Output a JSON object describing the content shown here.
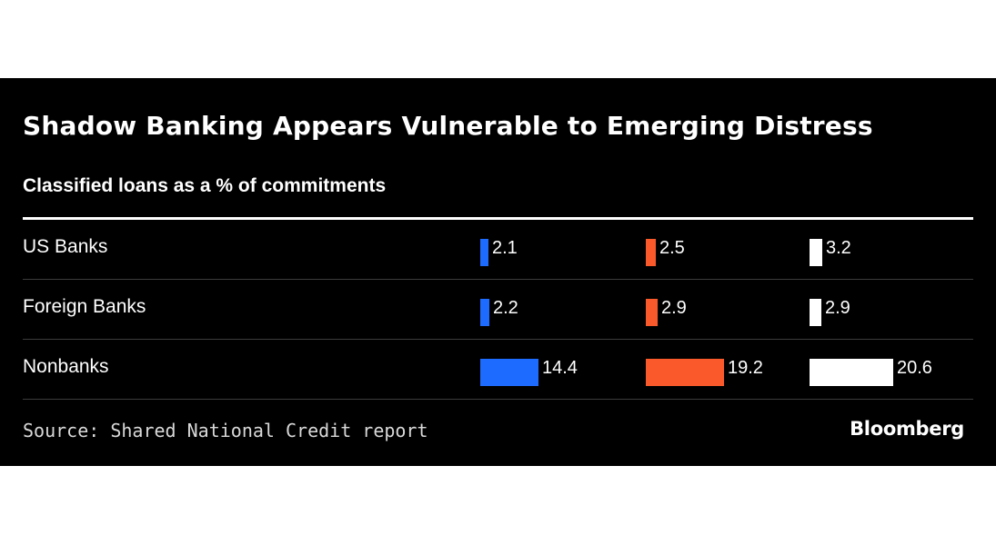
{
  "title": "Shadow Banking Appears Vulnerable to Emerging Distress",
  "subtitle": "Classified loans as a % of commitments",
  "source": "Source: Shared National Credit report",
  "brand": "Bloomberg",
  "colors": {
    "background": "#000000",
    "series": [
      "#1e6bff",
      "#fa5a2b",
      "#ffffff"
    ]
  },
  "chart_data": {
    "type": "bar",
    "title": "Shadow Banking Appears Vulnerable to Emerging Distress",
    "subtitle": "Classified loans as a % of commitments",
    "categories": [
      "US Banks",
      "Foreign Banks",
      "Nonbanks"
    ],
    "series": [
      {
        "values": [
          2.1,
          2.2,
          14.4
        ],
        "color": "#1e6bff"
      },
      {
        "values": [
          2.5,
          2.9,
          19.2
        ],
        "color": "#fa5a2b"
      },
      {
        "values": [
          3.2,
          2.9,
          20.6
        ],
        "color": "#ffffff"
      }
    ],
    "labels": [
      [
        "2.1",
        "2.2",
        "14.4"
      ],
      [
        "2.5",
        "2.9",
        "19.2"
      ],
      [
        "3.2",
        "2.9",
        "20.6"
      ]
    ],
    "xlim": [
      0,
      20.6
    ],
    "grid": false,
    "legend": "none"
  }
}
